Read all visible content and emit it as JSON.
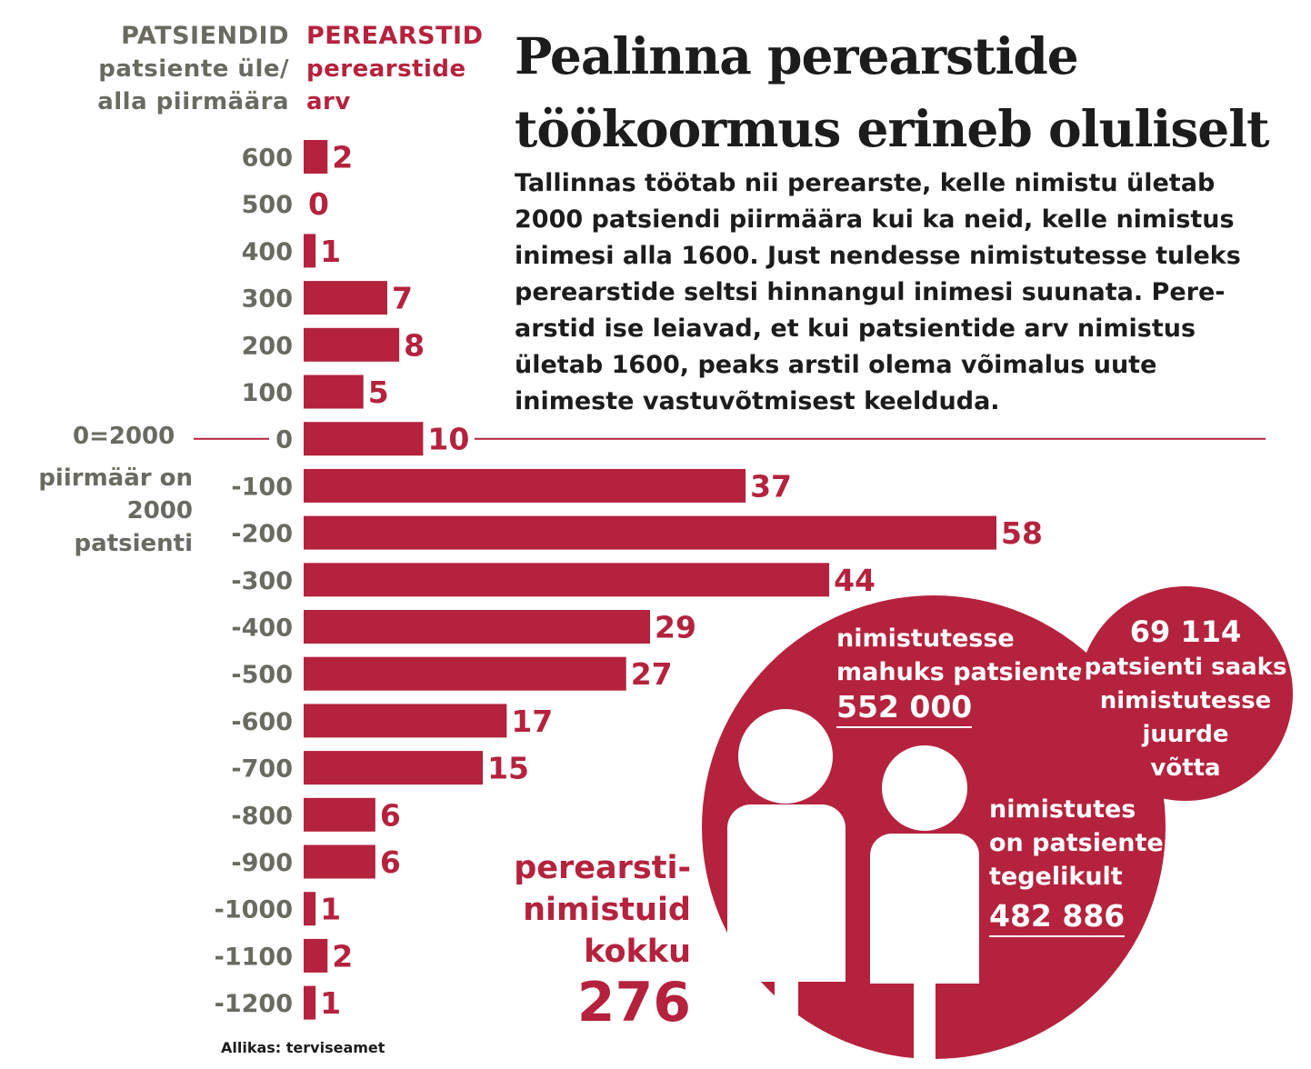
{
  "header": {
    "left_title": "PATSIENDID",
    "left_sub_1": "patsiente üle/",
    "left_sub_2": "alla piirmäära",
    "right_title": "PEREARSTID",
    "right_sub_1": "perearstide",
    "right_sub_2": "arv"
  },
  "title_line_1": "Pealinna perearstide",
  "title_line_2": "töökoormus erineb oluliselt",
  "intro": "Tallinnas töötab nii perearste, kelle nimistu ületab 2000 patsiendi piirmäära kui ka neid, kelle nimistus inimesi alla 1600. Just nendesse nimistutesse tuleks perearstide seltsi hinnangul inimesi suunata. Pere-arstid ise leiavad, et kui patsientide arv nimistus ületab 1600, peaks arstil olema võimalus uute inimeste vastuvõtmisest keelduda.",
  "zero_label": "0=2000",
  "zero_note": "piirmäär on 2000 patsienti",
  "colors": {
    "accent": "#b5223d",
    "grey_text": "#6a6a62",
    "dark_text": "#1c1c1c"
  },
  "chart_data": {
    "type": "bar",
    "orientation": "horizontal",
    "categories": [
      "600",
      "500",
      "400",
      "300",
      "200",
      "100",
      "0",
      "-100",
      "-200",
      "-300",
      "-400",
      "-500",
      "-600",
      "-700",
      "-800",
      "-900",
      "-1000",
      "-1100",
      "-1200"
    ],
    "values": [
      2,
      0,
      1,
      7,
      8,
      5,
      10,
      37,
      58,
      44,
      29,
      27,
      17,
      15,
      6,
      6,
      1,
      2,
      1
    ],
    "xlabel": "perearstide arv",
    "ylabel": "patsiente üle/alla piirmäära",
    "xlim": [
      0,
      58
    ],
    "data_labels": true,
    "color": "#b5223d"
  },
  "capacity": {
    "text_1": "nimistutesse",
    "text_2": "mahuks patsiente",
    "value": "552 000"
  },
  "actual": {
    "text_1": "nimistutes",
    "text_2": "on patsiente",
    "text_3": "tegelikult",
    "value": "482 886"
  },
  "extra": {
    "value": "69 114",
    "text_1": "patsienti saaks",
    "text_2": "nimistutesse",
    "text_3": "juurde",
    "text_4": "võtta"
  },
  "total": {
    "text_1": "perearsti-",
    "text_2": "nimistuid",
    "text_3": "kokku",
    "value": "276"
  },
  "source": "Allikas: terviseamet"
}
